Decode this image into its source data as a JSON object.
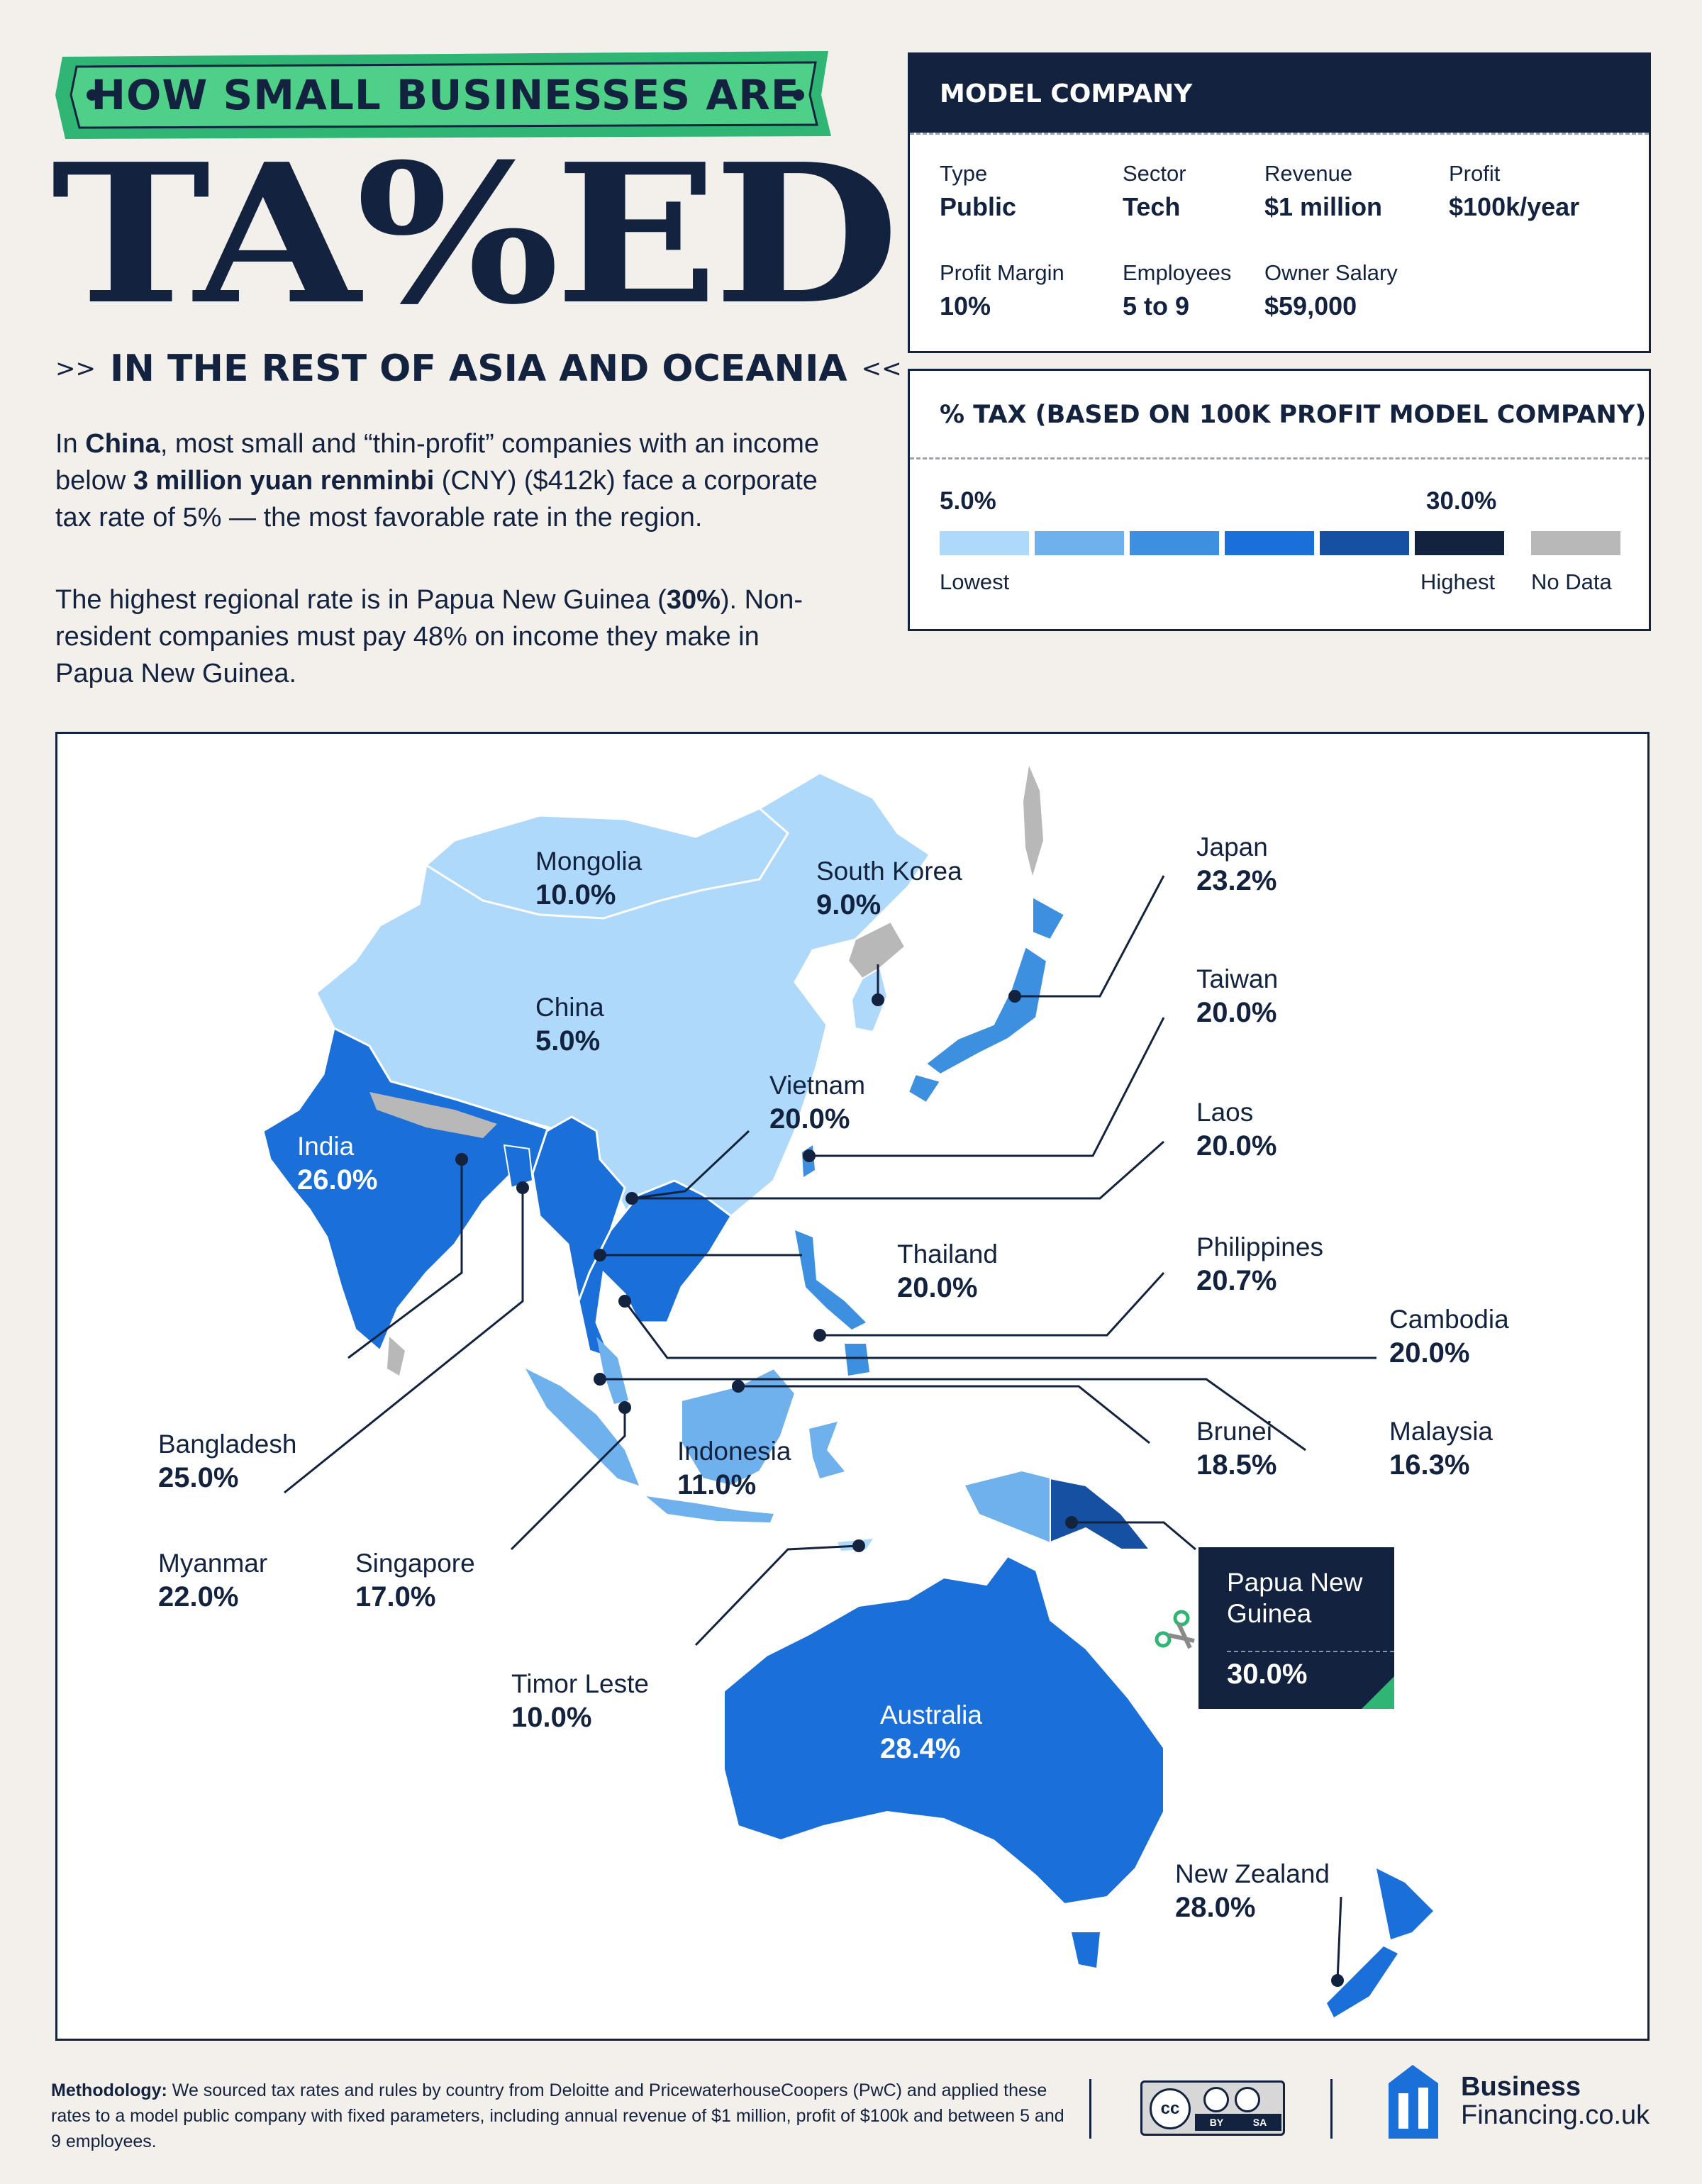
{
  "header": {
    "banner": "HOW SMALL BUSINESSES ARE",
    "title": "TA%ED",
    "subtitle": "IN THE REST OF ASIA AND OCEANIA"
  },
  "intro": {
    "p1_a": "In ",
    "p1_china": "China",
    "p1_b": ", most small and “thin-profit” companies with an income below ",
    "p1_amount": "3 million yuan renminbi",
    "p1_c": " (CNY) ($412k) face a corporate tax rate of 5% — the most favorable rate in the region.",
    "p2_a": "The highest regional rate is in Papua New Guinea (",
    "p2_rate": "30%",
    "p2_b": "). Non-resident companies must pay 48% on income they make in Papua New Guinea."
  },
  "model_company": {
    "title": "MODEL COMPANY",
    "fields": [
      {
        "label": "Type",
        "value": "Public"
      },
      {
        "label": "Sector",
        "value": "Tech"
      },
      {
        "label": "Revenue",
        "value": "$1 million"
      },
      {
        "label": "Profit",
        "value": "$100k/year"
      },
      {
        "label": "Profit Margin",
        "value": "10%"
      },
      {
        "label": "Employees",
        "value": "5 to 9"
      },
      {
        "label": "Owner Salary",
        "value": "$59,000"
      }
    ]
  },
  "tax_legend": {
    "title": "% TAX (BASED ON 100K PROFIT MODEL COMPANY)",
    "min_value": "5.0%",
    "max_value": "30.0%",
    "lowest_label": "Lowest",
    "highest_label": "Highest",
    "nodata_label": "No Data",
    "colors": [
      "#aed9fb",
      "#6fb1ec",
      "#3d8fe0",
      "#1a6fd9",
      "#1550a3",
      "#13233f"
    ],
    "nodata_color": "#b8b8b8"
  },
  "countries": [
    {
      "name": "Mongolia",
      "rate": "10.0%"
    },
    {
      "name": "South Korea",
      "rate": "9.0%"
    },
    {
      "name": "Japan",
      "rate": "23.2%"
    },
    {
      "name": "China",
      "rate": "5.0%"
    },
    {
      "name": "Taiwan",
      "rate": "20.0%"
    },
    {
      "name": "Vietnam",
      "rate": "20.0%"
    },
    {
      "name": "Laos",
      "rate": "20.0%"
    },
    {
      "name": "India",
      "rate": "26.0%"
    },
    {
      "name": "Thailand",
      "rate": "20.0%"
    },
    {
      "name": "Philippines",
      "rate": "20.7%"
    },
    {
      "name": "Cambodia",
      "rate": "20.0%"
    },
    {
      "name": "Brunei",
      "rate": "18.5%"
    },
    {
      "name": "Malaysia",
      "rate": "16.3%"
    },
    {
      "name": "Bangladesh",
      "rate": "25.0%"
    },
    {
      "name": "Indonesia",
      "rate": "11.0%"
    },
    {
      "name": "Myanmar",
      "rate": "22.0%"
    },
    {
      "name": "Singapore",
      "rate": "17.0%"
    },
    {
      "name": "Timor Leste",
      "rate": "10.0%"
    },
    {
      "name": "Australia",
      "rate": "28.4%"
    },
    {
      "name": "New Zealand",
      "rate": "28.0%"
    },
    {
      "name": "Papua New Guinea",
      "rate": "30.0%"
    }
  ],
  "footer": {
    "methodology_label": "Methodology:",
    "methodology_text": " We sourced tax rates and rules by country from Deloitte and PricewaterhouseCoopers (PwC) and applied these rates to a model public company with fixed parameters, including annual revenue of $1 million, profit of $100k and between 5 and 9 employees.",
    "license_cc": "cc",
    "license_by": "BY",
    "license_sa": "SA",
    "brand_line1": "Business",
    "brand_line2": "Financing.co.uk"
  }
}
